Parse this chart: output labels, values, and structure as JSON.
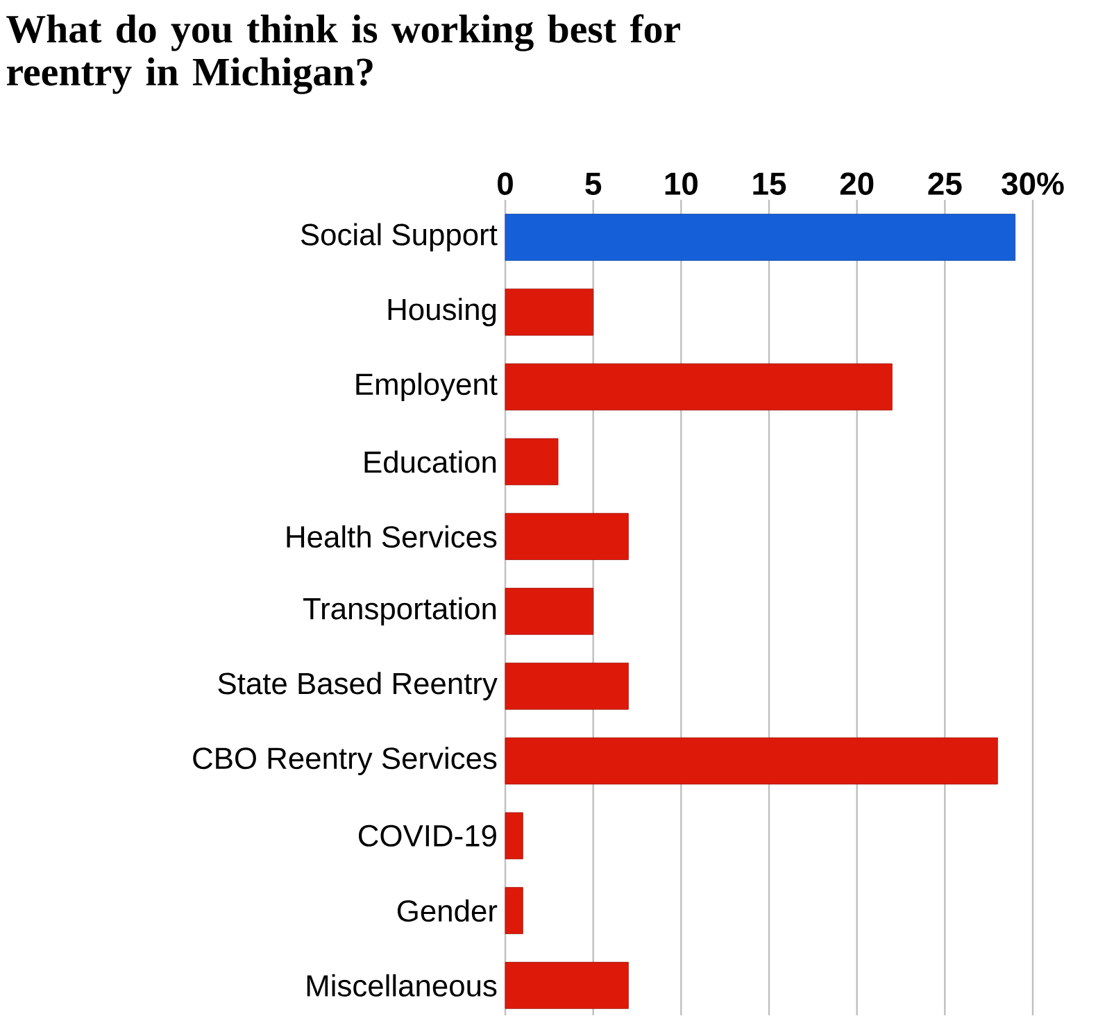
{
  "chart_data": {
    "type": "bar",
    "orientation": "horizontal",
    "title": "What do you think is working best for reentry in Michigan?",
    "categories": [
      "Social Support",
      "Housing",
      "Employent",
      "Education",
      "Health Services",
      "Transportation",
      "State Based Reentry",
      "CBO Reentry Services",
      "COVID-19",
      "Gender",
      "Miscellaneous"
    ],
    "values": [
      29,
      5,
      22,
      3,
      7,
      5,
      7,
      28,
      1,
      1,
      7
    ],
    "colors": [
      "#1560d8",
      "#dd1a0a",
      "#dd1a0a",
      "#dd1a0a",
      "#dd1a0a",
      "#dd1a0a",
      "#dd1a0a",
      "#dd1a0a",
      "#dd1a0a",
      "#dd1a0a",
      "#dd1a0a"
    ],
    "xlim": [
      0,
      30
    ],
    "xticks": [
      0,
      5,
      10,
      15,
      20,
      25,
      {
        "value": 30,
        "label": "30%"
      }
    ],
    "grid": "x"
  }
}
